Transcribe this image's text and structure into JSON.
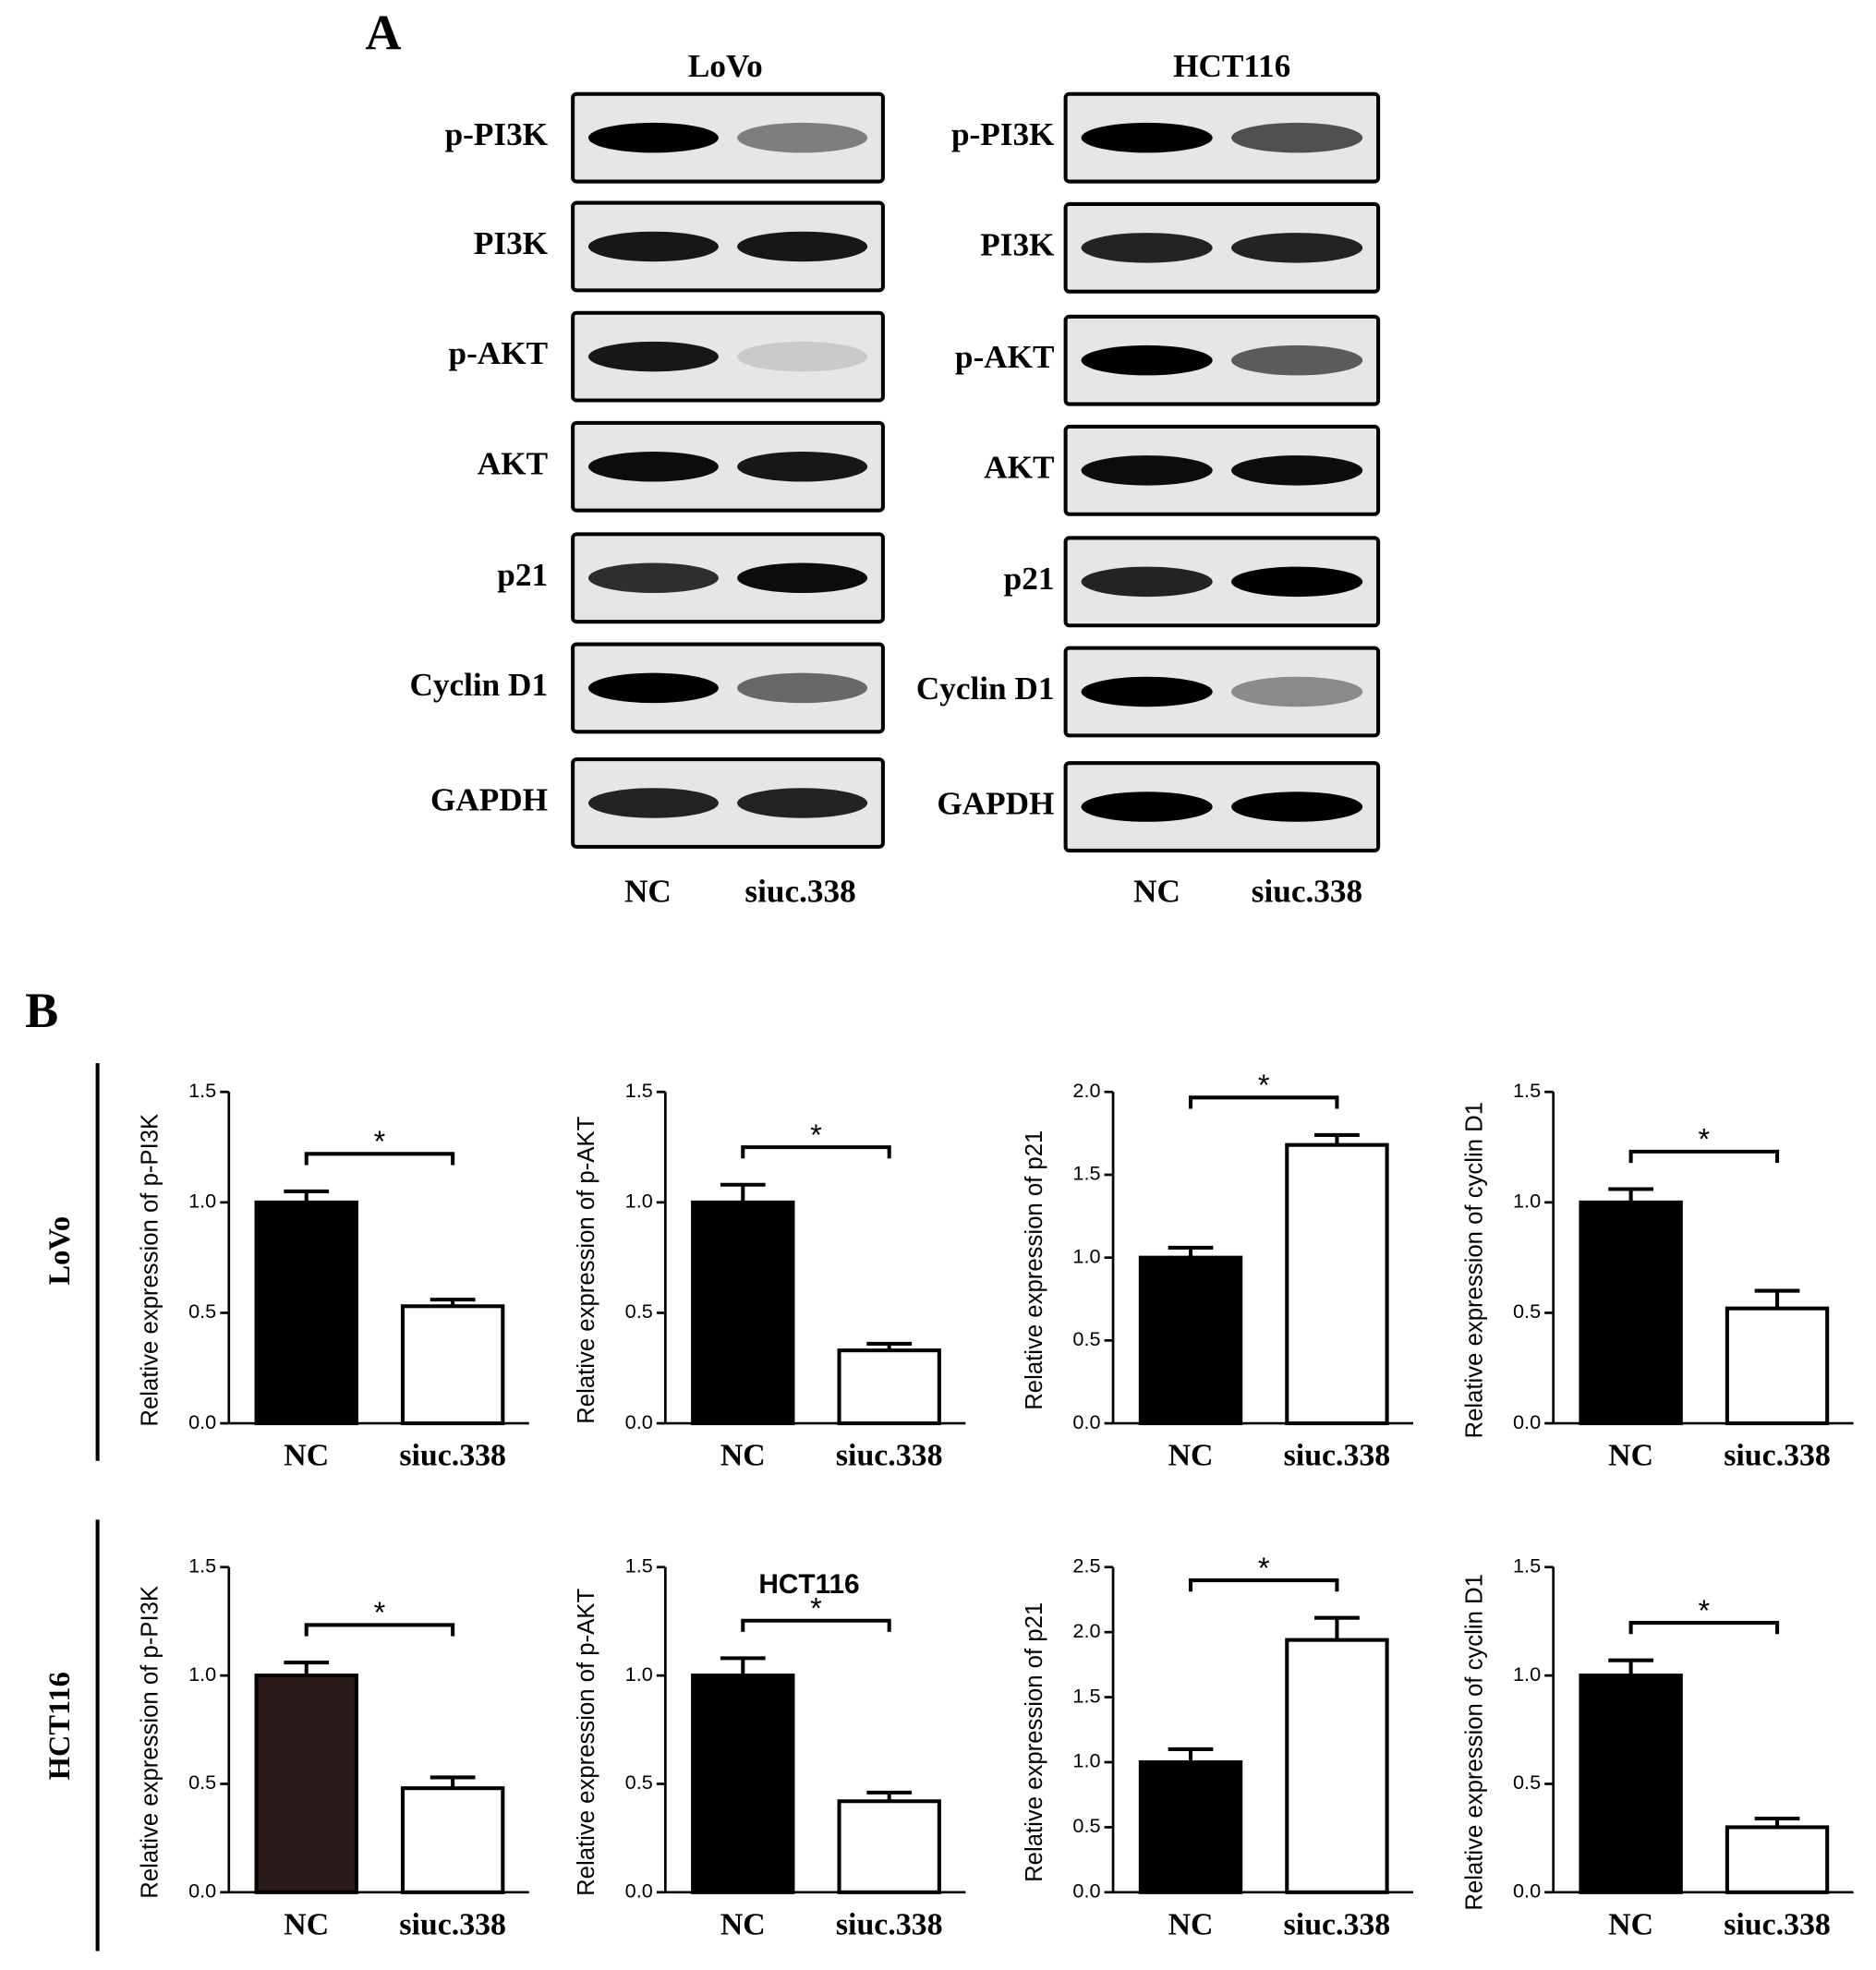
{
  "panel_a": {
    "label": "A",
    "blots": [
      {
        "title": "LoVo",
        "proteins": [
          "p-PI3K",
          "PI3K",
          "p-AKT",
          "AKT",
          "p21",
          "Cyclin D1",
          "GAPDH"
        ],
        "lanes": [
          "NC",
          "siuc.338"
        ]
      },
      {
        "title": "HCT116",
        "proteins": [
          "p-PI3K",
          "PI3K",
          "p-AKT",
          "AKT",
          "p21",
          "Cyclin D1",
          "GAPDH"
        ],
        "lanes": [
          "NC",
          "siuc.338"
        ]
      }
    ]
  },
  "panel_b": {
    "label": "B",
    "row_labels": [
      "LoVo",
      "HCT116"
    ]
  },
  "chart_data": [
    {
      "type": "bar",
      "ylabel": "Relative expression of p-PI3K",
      "categories": [
        "NC",
        "siuc.338"
      ],
      "values": [
        1.0,
        0.53
      ],
      "errors": [
        0.05,
        0.03
      ],
      "colors": [
        "#000000",
        "#ffffff"
      ],
      "ylim": [
        0,
        1.5
      ],
      "yticks": [
        {
          "value": 0,
          "label": "0.0"
        },
        0.5,
        {
          "value": 1,
          "label": "1.0"
        },
        1.5
      ],
      "annotation": "*"
    },
    {
      "type": "bar",
      "ylabel": "Relative expression of p-AKT",
      "categories": [
        "NC",
        "siuc.338"
      ],
      "values": [
        1.0,
        0.33
      ],
      "errors": [
        0.08,
        0.03
      ],
      "colors": [
        "#000000",
        "#ffffff"
      ],
      "ylim": [
        0,
        1.5
      ],
      "yticks": [
        {
          "value": 0,
          "label": "0.0"
        },
        0.5,
        {
          "value": 1,
          "label": "1.0"
        },
        1.5
      ],
      "annotation": "*"
    },
    {
      "type": "bar",
      "ylabel": "Relative expression of p21",
      "categories": [
        "NC",
        "siuc.338"
      ],
      "values": [
        1.0,
        1.68
      ],
      "errors": [
        0.06,
        0.06
      ],
      "colors": [
        "#000000",
        "#ffffff"
      ],
      "ylim": [
        0,
        2
      ],
      "yticks": [
        {
          "value": 0,
          "label": "0.0"
        },
        0.5,
        {
          "value": 1,
          "label": "1.0"
        },
        1.5,
        {
          "value": 2,
          "label": "2.0"
        }
      ],
      "annotation": "*"
    },
    {
      "type": "bar",
      "ylabel": "Relative expression of cyclin D1",
      "categories": [
        "NC",
        "siuc.338"
      ],
      "values": [
        1.0,
        0.52
      ],
      "errors": [
        0.06,
        0.08
      ],
      "colors": [
        "#000000",
        "#ffffff"
      ],
      "ylim": [
        0,
        1.5
      ],
      "yticks": [
        {
          "value": 0,
          "label": "0.0"
        },
        0.5,
        {
          "value": 1,
          "label": "1.0"
        },
        1.5
      ],
      "annotation": "*"
    },
    {
      "type": "bar",
      "ylabel": "Relative expression of p-PI3K",
      "categories": [
        "NC",
        "siuc.338"
      ],
      "values": [
        1.0,
        0.48
      ],
      "errors": [
        0.06,
        0.05
      ],
      "colors": [
        "#2a1a1a",
        "#ffffff"
      ],
      "ylim": [
        0,
        1.5
      ],
      "yticks": [
        {
          "value": 0,
          "label": "0.0"
        },
        0.5,
        {
          "value": 1,
          "label": "1.0"
        },
        1.5
      ],
      "annotation": "*"
    },
    {
      "type": "bar",
      "title": "HCT116",
      "ylabel": "Relative expression of p-AKT",
      "categories": [
        "NC",
        "siuc.338"
      ],
      "values": [
        1.0,
        0.42
      ],
      "errors": [
        0.08,
        0.04
      ],
      "colors": [
        "#000000",
        "#ffffff"
      ],
      "ylim": [
        0,
        1.5
      ],
      "yticks": [
        {
          "value": 0,
          "label": "0.0"
        },
        0.5,
        {
          "value": 1,
          "label": "1.0"
        },
        1.5
      ],
      "annotation": "*"
    },
    {
      "type": "bar",
      "ylabel": "Relative expression of p21",
      "categories": [
        "NC",
        "siuc.338"
      ],
      "values": [
        1.0,
        1.94
      ],
      "errors": [
        0.1,
        0.17
      ],
      "colors": [
        "#000000",
        "#ffffff"
      ],
      "ylim": [
        0,
        2.5
      ],
      "yticks": [
        {
          "value": 0,
          "label": "0.0"
        },
        0.5,
        {
          "value": 1,
          "label": "1.0"
        },
        1.5,
        {
          "value": 2,
          "label": "2.0"
        },
        2.5
      ],
      "annotation": "*"
    },
    {
      "type": "bar",
      "ylabel": "Relative expression of cyclin D1",
      "categories": [
        "NC",
        "siuc.338"
      ],
      "values": [
        1.0,
        0.3
      ],
      "errors": [
        0.07,
        0.04
      ],
      "colors": [
        "#000000",
        "#ffffff"
      ],
      "ylim": [
        0,
        1.5
      ],
      "yticks": [
        {
          "value": 0,
          "label": "0.0"
        },
        0.5,
        {
          "value": 1,
          "label": "1.0"
        },
        1.5
      ],
      "annotation": "*"
    }
  ]
}
